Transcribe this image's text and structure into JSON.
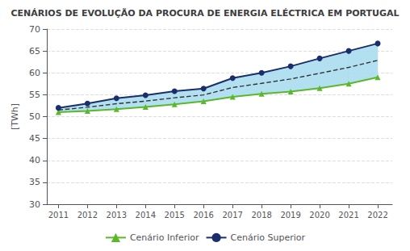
{
  "chart_data": {
    "type": "line",
    "title": "CENÁRIOS DE EVOLUÇÃO DA PROCURA DE ENERGIA ELÉCTRICA EM PORTUGAL",
    "y_label": "[TWh]",
    "x": [
      2011,
      2012,
      2013,
      2014,
      2015,
      2016,
      2017,
      2018,
      2019,
      2020,
      2021,
      2022
    ],
    "xlim": [
      2010.6,
      2022.5
    ],
    "xticks": [
      2011,
      2012,
      2013,
      2014,
      2015,
      2016,
      2017,
      2018,
      2019,
      2020,
      2021,
      2022
    ],
    "ylim": [
      30,
      70
    ],
    "yticks": [
      30,
      35,
      40,
      45,
      50,
      55,
      60,
      65,
      70
    ],
    "grid": true,
    "legend": "bottom",
    "series": [
      {
        "type": "band",
        "color": "#aaddee",
        "lower": [
          51.0,
          51.3,
          51.7,
          52.2,
          52.8,
          53.5,
          54.5,
          55.2,
          55.7,
          56.5,
          57.5,
          59.0
        ],
        "upper": [
          52.0,
          53.0,
          54.2,
          54.9,
          55.8,
          56.4,
          58.8,
          60.0,
          61.5,
          63.3,
          65.0,
          66.7
        ]
      },
      {
        "type": "line",
        "color": "#333333",
        "line_style": "dashed",
        "marker": "none",
        "values": [
          51.5,
          52.15,
          52.95,
          53.55,
          54.3,
          54.95,
          56.65,
          57.6,
          58.6,
          59.9,
          61.25,
          62.85
        ]
      },
      {
        "type": "line",
        "name": "Cenário Inferior",
        "color": "#5ab82a",
        "line_style": "solid",
        "marker": "triangle",
        "values": [
          51.0,
          51.3,
          51.7,
          52.2,
          52.8,
          53.5,
          54.5,
          55.2,
          55.7,
          56.5,
          57.5,
          59.0
        ]
      },
      {
        "type": "line",
        "name": "Cenário Superior",
        "color": "#1a2e6b",
        "line_style": "solid",
        "marker": "circle",
        "values": [
          52.0,
          53.0,
          54.2,
          54.9,
          55.8,
          56.4,
          58.8,
          60.0,
          61.5,
          63.3,
          65.0,
          66.7
        ]
      }
    ]
  }
}
